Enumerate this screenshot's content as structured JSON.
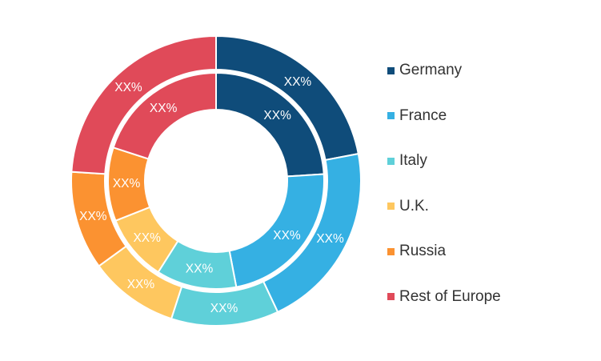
{
  "chart_data": {
    "type": "pie",
    "variant": "nested-donut",
    "title": "",
    "categories": [
      "Germany",
      "France",
      "Italy",
      "U.K.",
      "Russia",
      "Rest of Europe"
    ],
    "colors": [
      "#0f4c7a",
      "#35b0e3",
      "#5fd0d9",
      "#fec75f",
      "#fb9231",
      "#e04a59"
    ],
    "series": [
      {
        "ring": "outer",
        "values": [
          22,
          21,
          12,
          10,
          11,
          24
        ],
        "labels": [
          "XX%",
          "XX%",
          "XX%",
          "XX%",
          "XX%",
          "XX%"
        ]
      },
      {
        "ring": "inner",
        "values": [
          24,
          23,
          12,
          10,
          11,
          20
        ],
        "labels": [
          "XX%",
          "XX%",
          "XX%",
          "XX%",
          "XX%",
          "XX%"
        ]
      }
    ],
    "legend_position": "right"
  }
}
